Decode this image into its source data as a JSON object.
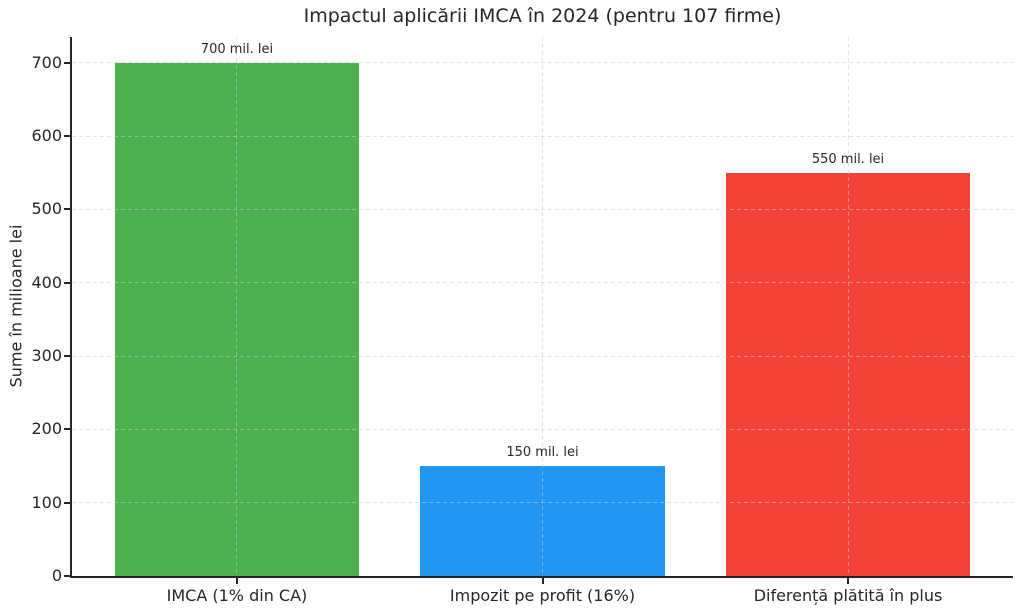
{
  "chart_data": {
    "type": "bar",
    "title": "Impactul aplicării IMCA în 2024 (pentru 107 firme)",
    "ylabel": "Sume în milioane lei",
    "xlabel": "",
    "categories": [
      "IMCA (1% din CA)",
      "Impozit pe profit (16%)",
      "Diferență plătită în plus"
    ],
    "values": [
      700,
      150,
      550
    ],
    "bar_labels": [
      "700 mil. lei",
      "150 mil. lei",
      "550 mil. lei"
    ],
    "bar_colors": [
      "#4caf50",
      "#2196f3",
      "#f44336"
    ],
    "ylim": [
      0,
      735
    ],
    "yticks": [
      0,
      100,
      200,
      300,
      400,
      500,
      600,
      700
    ],
    "grid": "both",
    "grid_style": "dashed",
    "grid_color": "#cccccc",
    "grid_opacity": 0.55,
    "bar_width_fraction": 0.8,
    "x_margin": 0.54,
    "axis_color": "#262626",
    "text_color": "#262626",
    "background_color": "#ffffff",
    "legend": null
  }
}
